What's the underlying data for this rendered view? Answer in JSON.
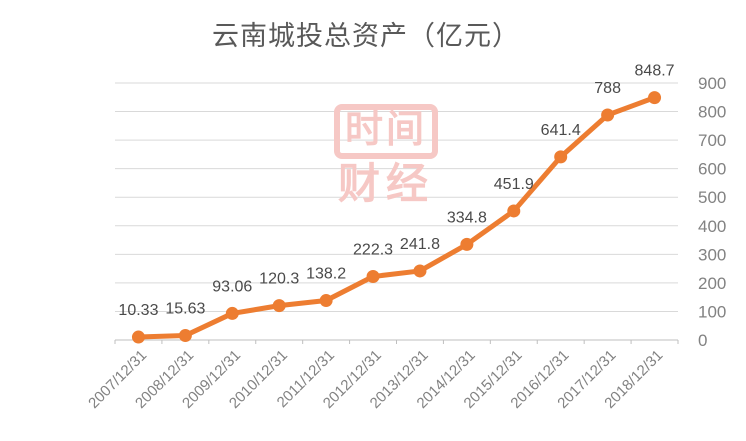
{
  "page": {
    "title": "云南城投总资产（亿元）"
  },
  "watermark": {
    "line1": "时间",
    "line2": "财经",
    "color": "#F6C8C5"
  },
  "chart_data": {
    "type": "line",
    "title": "云南城投总资产（亿元）",
    "categories": [
      "2007/12/31",
      "2008/12/31",
      "2009/12/31",
      "2010/12/31",
      "2011/12/31",
      "2012/12/31",
      "2013/12/31",
      "2014/12/31",
      "2015/12/31",
      "2016/12/31",
      "2017/12/31",
      "2018/12/31"
    ],
    "values": [
      10.33,
      15.63,
      93.06,
      120.3,
      138.2,
      222.3,
      241.8,
      334.8,
      451.9,
      641.4,
      788,
      848.7
    ],
    "point_labels": [
      "10.33",
      "15.63",
      "93.06",
      "120.3",
      "138.2",
      "222.3",
      "241.8",
      "334.8",
      "451.9",
      "641.4",
      "788",
      "848.7"
    ],
    "xlabel": "",
    "ylabel": "",
    "ylim": [
      0,
      900
    ],
    "ytick_step": 100,
    "yticks": [
      0,
      100,
      200,
      300,
      400,
      500,
      600,
      700,
      800,
      900
    ],
    "grid": true,
    "legend": false,
    "y_axis_side": "right",
    "x_label_rotation": -45,
    "colors": {
      "series": "#ED7D31",
      "gridline": "#D9D9D9",
      "axis": "#BFBFBF",
      "title": "#595959",
      "point_label": "#4A4A4A",
      "tick_label": "#828282",
      "background": "#FFFFFF"
    }
  }
}
